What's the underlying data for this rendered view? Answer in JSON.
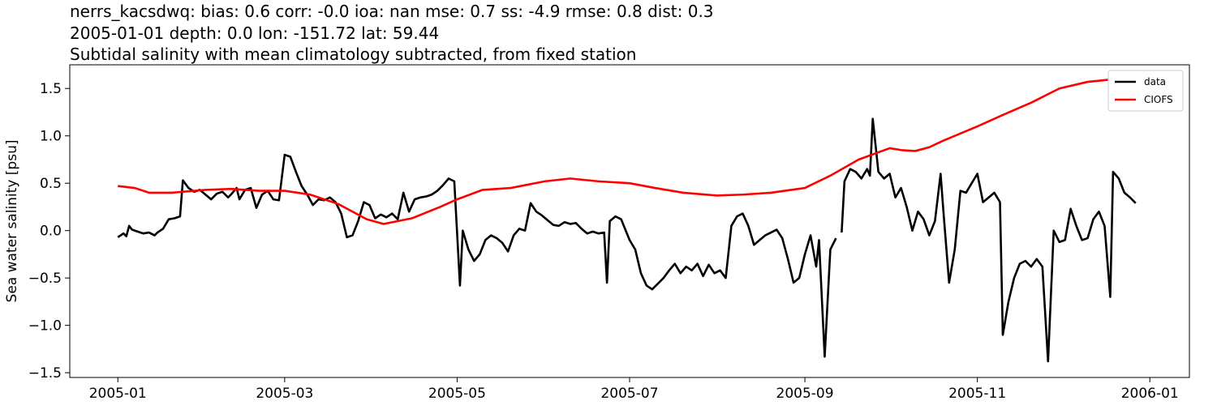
{
  "chart_data": {
    "type": "line",
    "title_lines": [
      "nerrs_kacsdwq: bias: 0.6  corr: -0.0  ioa: nan  mse: 0.7  ss: -4.9  rmse: 0.8  dist: 0.3",
      "2005-01-01 depth: 0.0 lon: -151.72 lat: 59.44",
      "Subtidal salinity with mean climatology subtracted, from fixed station"
    ],
    "xlabel": "",
    "ylabel": "Sea water salinity [psu]",
    "x_axis": "date",
    "xlim": [
      "2004-12-15",
      "2006-01-15"
    ],
    "ylim": [
      -1.55,
      1.75
    ],
    "x_ticks": [
      "2005-01",
      "2005-03",
      "2005-05",
      "2005-07",
      "2005-09",
      "2005-11",
      "2006-01"
    ],
    "y_ticks": [
      -1.5,
      -1.0,
      -0.5,
      0.0,
      0.5,
      1.0,
      1.5
    ],
    "grid": false,
    "legend_position": "top-right",
    "series": [
      {
        "name": "data",
        "color": "#000000",
        "segments": [
          [
            [
              "2005-01-01",
              -0.07
            ],
            [
              "2005-01-03",
              -0.03
            ],
            [
              "2005-01-04",
              -0.06
            ],
            [
              "2005-01-05",
              0.05
            ],
            [
              "2005-01-06",
              0.01
            ],
            [
              "2005-01-08",
              -0.01
            ],
            [
              "2005-01-10",
              -0.03
            ],
            [
              "2005-01-12",
              -0.02
            ],
            [
              "2005-01-14",
              -0.05
            ],
            [
              "2005-01-15",
              -0.02
            ],
            [
              "2005-01-17",
              0.02
            ],
            [
              "2005-01-19",
              0.12
            ],
            [
              "2005-01-21",
              0.13
            ],
            [
              "2005-01-23",
              0.15
            ],
            [
              "2005-01-24",
              0.53
            ],
            [
              "2005-01-26",
              0.45
            ],
            [
              "2005-01-28",
              0.41
            ],
            [
              "2005-01-30",
              0.43
            ],
            [
              "2005-02-01",
              0.38
            ],
            [
              "2005-02-03",
              0.33
            ],
            [
              "2005-02-05",
              0.39
            ],
            [
              "2005-02-07",
              0.41
            ],
            [
              "2005-02-09",
              0.35
            ],
            [
              "2005-02-10",
              0.38
            ],
            [
              "2005-02-12",
              0.45
            ],
            [
              "2005-02-13",
              0.33
            ],
            [
              "2005-02-15",
              0.43
            ],
            [
              "2005-02-17",
              0.45
            ],
            [
              "2005-02-19",
              0.24
            ],
            [
              "2005-02-21",
              0.38
            ],
            [
              "2005-02-23",
              0.42
            ],
            [
              "2005-02-25",
              0.33
            ],
            [
              "2005-02-27",
              0.32
            ],
            [
              "2005-03-01",
              0.8
            ],
            [
              "2005-03-03",
              0.78
            ],
            [
              "2005-03-05",
              0.62
            ],
            [
              "2005-03-07",
              0.47
            ],
            [
              "2005-03-09",
              0.38
            ],
            [
              "2005-03-11",
              0.27
            ],
            [
              "2005-03-13",
              0.33
            ],
            [
              "2005-03-15",
              0.32
            ],
            [
              "2005-03-17",
              0.35
            ],
            [
              "2005-03-19",
              0.3
            ],
            [
              "2005-03-21",
              0.18
            ],
            [
              "2005-03-23",
              -0.07
            ],
            [
              "2005-03-25",
              -0.05
            ],
            [
              "2005-03-27",
              0.1
            ],
            [
              "2005-03-29",
              0.3
            ],
            [
              "2005-03-31",
              0.27
            ],
            [
              "2005-04-02",
              0.13
            ],
            [
              "2005-04-04",
              0.17
            ],
            [
              "2005-04-06",
              0.14
            ],
            [
              "2005-04-08",
              0.18
            ],
            [
              "2005-04-10",
              0.12
            ],
            [
              "2005-04-12",
              0.4
            ],
            [
              "2005-04-14",
              0.2
            ],
            [
              "2005-04-16",
              0.33
            ],
            [
              "2005-04-18",
              0.35
            ],
            [
              "2005-04-20",
              0.36
            ],
            [
              "2005-04-22",
              0.38
            ],
            [
              "2005-04-24",
              0.42
            ],
            [
              "2005-04-26",
              0.48
            ],
            [
              "2005-04-28",
              0.55
            ],
            [
              "2005-04-30",
              0.52
            ],
            [
              "2005-05-02",
              -0.58
            ],
            [
              "2005-05-03",
              0.0
            ],
            [
              "2005-05-05",
              -0.2
            ],
            [
              "2005-05-07",
              -0.32
            ],
            [
              "2005-05-09",
              -0.25
            ],
            [
              "2005-05-11",
              -0.1
            ],
            [
              "2005-05-13",
              -0.05
            ],
            [
              "2005-05-15",
              -0.08
            ],
            [
              "2005-05-17",
              -0.13
            ],
            [
              "2005-05-19",
              -0.22
            ],
            [
              "2005-05-21",
              -0.05
            ],
            [
              "2005-05-23",
              0.02
            ],
            [
              "2005-05-25",
              0.0
            ],
            [
              "2005-05-27",
              0.29
            ],
            [
              "2005-05-29",
              0.2
            ],
            [
              "2005-05-31",
              0.16
            ],
            [
              "2005-06-02",
              0.11
            ],
            [
              "2005-06-04",
              0.06
            ],
            [
              "2005-06-06",
              0.05
            ],
            [
              "2005-06-08",
              0.09
            ],
            [
              "2005-06-10",
              0.07
            ],
            [
              "2005-06-12",
              0.08
            ],
            [
              "2005-06-14",
              0.02
            ],
            [
              "2005-06-16",
              -0.03
            ],
            [
              "2005-06-18",
              -0.01
            ],
            [
              "2005-06-20",
              -0.03
            ],
            [
              "2005-06-22",
              -0.02
            ],
            [
              "2005-06-23",
              -0.55
            ],
            [
              "2005-06-24",
              0.1
            ],
            [
              "2005-06-26",
              0.15
            ],
            [
              "2005-06-28",
              0.12
            ],
            [
              "2005-07-01",
              -0.1
            ],
            [
              "2005-07-03",
              -0.2
            ],
            [
              "2005-07-05",
              -0.45
            ],
            [
              "2005-07-07",
              -0.58
            ],
            [
              "2005-07-09",
              -0.62
            ],
            [
              "2005-07-11",
              -0.56
            ],
            [
              "2005-07-13",
              -0.5
            ],
            [
              "2005-07-15",
              -0.42
            ],
            [
              "2005-07-17",
              -0.35
            ],
            [
              "2005-07-19",
              -0.45
            ],
            [
              "2005-07-21",
              -0.38
            ],
            [
              "2005-07-23",
              -0.42
            ],
            [
              "2005-07-25",
              -0.35
            ],
            [
              "2005-07-27",
              -0.48
            ],
            [
              "2005-07-29",
              -0.36
            ],
            [
              "2005-07-31",
              -0.45
            ],
            [
              "2005-08-02",
              -0.42
            ],
            [
              "2005-08-04",
              -0.5
            ],
            [
              "2005-08-06",
              0.05
            ],
            [
              "2005-08-08",
              0.15
            ],
            [
              "2005-08-10",
              0.18
            ],
            [
              "2005-08-12",
              0.05
            ],
            [
              "2005-08-14",
              -0.15
            ],
            [
              "2005-08-16",
              -0.1
            ],
            [
              "2005-08-18",
              -0.05
            ],
            [
              "2005-08-20",
              -0.02
            ],
            [
              "2005-08-22",
              0.01
            ],
            [
              "2005-08-24",
              -0.08
            ],
            [
              "2005-08-26",
              -0.3
            ],
            [
              "2005-08-28",
              -0.55
            ],
            [
              "2005-08-30",
              -0.5
            ],
            [
              "2005-09-01",
              -0.25
            ],
            [
              "2005-09-03",
              -0.05
            ],
            [
              "2005-09-05",
              -0.38
            ],
            [
              "2005-09-06",
              -0.1
            ],
            [
              "2005-09-08",
              -1.33
            ],
            [
              "2005-09-10",
              -0.2
            ],
            [
              "2005-09-12",
              -0.08
            ]
          ],
          [
            [
              "2005-09-14",
              -0.02
            ],
            [
              "2005-09-15",
              0.52
            ],
            [
              "2005-09-17",
              0.65
            ],
            [
              "2005-09-19",
              0.62
            ],
            [
              "2005-09-21",
              0.55
            ],
            [
              "2005-09-23",
              0.65
            ],
            [
              "2005-09-24",
              0.58
            ],
            [
              "2005-09-25",
              1.18
            ],
            [
              "2005-09-27",
              0.62
            ],
            [
              "2005-09-29",
              0.55
            ],
            [
              "2005-10-01",
              0.6
            ],
            [
              "2005-10-03",
              0.35
            ],
            [
              "2005-10-05",
              0.45
            ],
            [
              "2005-10-07",
              0.25
            ],
            [
              "2005-10-09",
              0.0
            ],
            [
              "2005-10-11",
              0.2
            ],
            [
              "2005-10-13",
              0.12
            ],
            [
              "2005-10-15",
              -0.05
            ],
            [
              "2005-10-17",
              0.1
            ],
            [
              "2005-10-19",
              0.6
            ],
            [
              "2005-10-20",
              0.2
            ],
            [
              "2005-10-22",
              -0.55
            ],
            [
              "2005-10-24",
              -0.2
            ],
            [
              "2005-10-26",
              0.42
            ],
            [
              "2005-10-28",
              0.4
            ],
            [
              "2005-10-30",
              0.5
            ],
            [
              "2005-11-01",
              0.6
            ],
            [
              "2005-11-03",
              0.3
            ],
            [
              "2005-11-05",
              0.35
            ],
            [
              "2005-11-07",
              0.4
            ],
            [
              "2005-11-09",
              0.3
            ],
            [
              "2005-11-10",
              -1.1
            ],
            [
              "2005-11-12",
              -0.75
            ],
            [
              "2005-11-14",
              -0.5
            ],
            [
              "2005-11-16",
              -0.35
            ],
            [
              "2005-11-18",
              -0.32
            ],
            [
              "2005-11-20",
              -0.38
            ],
            [
              "2005-11-22",
              -0.3
            ],
            [
              "2005-11-24",
              -0.38
            ],
            [
              "2005-11-26",
              -1.38
            ],
            [
              "2005-11-28",
              0.0
            ],
            [
              "2005-11-30",
              -0.12
            ],
            [
              "2005-12-02",
              -0.1
            ],
            [
              "2005-12-04",
              0.23
            ],
            [
              "2005-12-06",
              0.05
            ],
            [
              "2005-12-08",
              -0.1
            ],
            [
              "2005-12-10",
              -0.08
            ],
            [
              "2005-12-12",
              0.12
            ],
            [
              "2005-12-14",
              0.2
            ],
            [
              "2005-12-16",
              0.05
            ],
            [
              "2005-12-18",
              -0.7
            ],
            [
              "2005-12-19",
              0.62
            ],
            [
              "2005-12-21",
              0.55
            ],
            [
              "2005-12-23",
              0.4
            ],
            [
              "2005-12-25",
              0.35
            ],
            [
              "2005-12-27",
              0.29
            ]
          ]
        ]
      },
      {
        "name": "CIOFS",
        "color": "#ff0000",
        "segments": [
          [
            [
              "2005-01-01",
              0.47
            ],
            [
              "2005-01-07",
              0.45
            ],
            [
              "2005-01-12",
              0.4
            ],
            [
              "2005-01-20",
              0.4
            ],
            [
              "2005-02-01",
              0.43
            ],
            [
              "2005-02-10",
              0.44
            ],
            [
              "2005-02-20",
              0.42
            ],
            [
              "2005-03-01",
              0.42
            ],
            [
              "2005-03-10",
              0.38
            ],
            [
              "2005-03-20",
              0.28
            ],
            [
              "2005-03-30",
              0.12
            ],
            [
              "2005-04-05",
              0.07
            ],
            [
              "2005-04-15",
              0.13
            ],
            [
              "2005-04-25",
              0.25
            ],
            [
              "2005-05-01",
              0.33
            ],
            [
              "2005-05-10",
              0.43
            ],
            [
              "2005-05-20",
              0.45
            ],
            [
              "2005-06-01",
              0.52
            ],
            [
              "2005-06-10",
              0.55
            ],
            [
              "2005-06-20",
              0.52
            ],
            [
              "2005-07-01",
              0.5
            ],
            [
              "2005-07-10",
              0.45
            ],
            [
              "2005-07-20",
              0.4
            ],
            [
              "2005-08-01",
              0.37
            ],
            [
              "2005-08-10",
              0.38
            ],
            [
              "2005-08-20",
              0.4
            ],
            [
              "2005-09-01",
              0.45
            ],
            [
              "2005-09-10",
              0.58
            ],
            [
              "2005-09-20",
              0.75
            ],
            [
              "2005-10-01",
              0.87
            ],
            [
              "2005-10-05",
              0.85
            ],
            [
              "2005-10-10",
              0.84
            ],
            [
              "2005-10-15",
              0.88
            ],
            [
              "2005-10-20",
              0.95
            ],
            [
              "2005-11-01",
              1.1
            ],
            [
              "2005-11-10",
              1.22
            ],
            [
              "2005-11-20",
              1.35
            ],
            [
              "2005-11-30",
              1.5
            ],
            [
              "2005-12-10",
              1.57
            ],
            [
              "2005-12-20",
              1.6
            ],
            [
              "2005-12-27",
              1.58
            ],
            [
              "2005-12-31",
              1.6
            ]
          ]
        ]
      }
    ]
  }
}
